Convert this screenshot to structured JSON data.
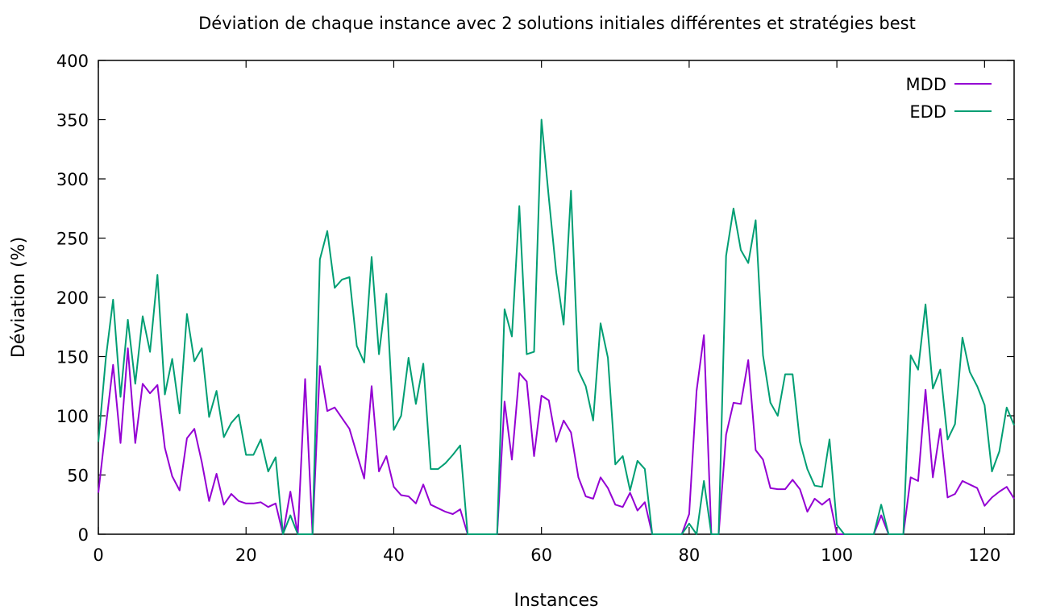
{
  "chart_data": {
    "type": "line",
    "title": "Déviation de chaque instance avec 2 solutions initiales différentes et stratégies best",
    "xlabel": "Instances",
    "ylabel": "Déviation (%)",
    "xlim": [
      0,
      124
    ],
    "ylim": [
      0,
      400
    ],
    "xticks": [
      0,
      20,
      40,
      60,
      80,
      100,
      120
    ],
    "yticks": [
      0,
      50,
      100,
      150,
      200,
      250,
      300,
      350,
      400
    ],
    "xtick_labels": [
      "0",
      "20",
      "40",
      "60",
      "80",
      "100",
      "120"
    ],
    "ytick_labels": [
      "0",
      "50",
      "100",
      "150",
      "200",
      "250",
      "300",
      "350",
      "400"
    ],
    "grid": false,
    "legend_position": "top-right",
    "series": [
      {
        "name": "MDD",
        "color": "#9400d3",
        "x": [
          0,
          1,
          2,
          3,
          4,
          5,
          6,
          7,
          8,
          9,
          10,
          11,
          12,
          13,
          14,
          15,
          16,
          17,
          18,
          19,
          20,
          21,
          22,
          23,
          24,
          25,
          26,
          27,
          28,
          29,
          30,
          31,
          32,
          33,
          34,
          35,
          36,
          37,
          38,
          39,
          40,
          41,
          42,
          43,
          44,
          45,
          46,
          47,
          48,
          49,
          50,
          51,
          52,
          53,
          54,
          55,
          56,
          57,
          58,
          59,
          60,
          61,
          62,
          63,
          64,
          65,
          66,
          67,
          68,
          69,
          70,
          71,
          72,
          73,
          74,
          75,
          76,
          77,
          78,
          79,
          80,
          81,
          82,
          83,
          84,
          85,
          86,
          87,
          88,
          89,
          90,
          91,
          92,
          93,
          94,
          95,
          96,
          97,
          98,
          99,
          100,
          101,
          102,
          103,
          104,
          105,
          106,
          107,
          108,
          109,
          110,
          111,
          112,
          113,
          114,
          115,
          116,
          117,
          118,
          119,
          120,
          121,
          122,
          123,
          124
        ],
        "values": [
          35,
          90,
          143,
          77,
          157,
          77,
          127,
          119,
          126,
          73,
          49,
          37,
          81,
          89,
          61,
          28,
          51,
          25,
          34,
          28,
          26,
          26,
          27,
          23,
          26,
          0,
          36,
          0,
          131,
          0,
          142,
          104,
          107,
          98,
          89,
          68,
          47,
          125,
          53,
          66,
          40,
          33,
          32,
          26,
          42,
          25,
          22,
          19,
          17,
          21,
          0,
          0,
          0,
          0,
          0,
          112,
          63,
          136,
          129,
          66,
          117,
          113,
          78,
          96,
          86,
          48,
          32,
          30,
          48,
          39,
          25,
          23,
          35,
          20,
          27,
          0,
          0,
          0,
          0,
          0,
          17,
          121,
          168,
          0,
          0,
          84,
          111,
          110,
          147,
          71,
          63,
          39,
          38,
          38,
          46,
          38,
          19,
          30,
          25,
          30,
          0,
          0,
          0,
          0,
          0,
          0,
          16,
          0,
          0,
          0,
          48,
          45,
          122,
          48,
          89,
          31,
          34,
          45,
          42,
          39,
          24,
          31,
          36,
          40,
          30
        ]
      },
      {
        "name": "EDD",
        "color": "#009e73",
        "x": [
          0,
          1,
          2,
          3,
          4,
          5,
          6,
          7,
          8,
          9,
          10,
          11,
          12,
          13,
          14,
          15,
          16,
          17,
          18,
          19,
          20,
          21,
          22,
          23,
          24,
          25,
          26,
          27,
          28,
          29,
          30,
          31,
          32,
          33,
          34,
          35,
          36,
          37,
          38,
          39,
          40,
          41,
          42,
          43,
          44,
          45,
          46,
          47,
          48,
          49,
          50,
          51,
          52,
          53,
          54,
          55,
          56,
          57,
          58,
          59,
          60,
          61,
          62,
          63,
          64,
          65,
          66,
          67,
          68,
          69,
          70,
          71,
          72,
          73,
          74,
          75,
          76,
          77,
          78,
          79,
          80,
          81,
          82,
          83,
          84,
          85,
          86,
          87,
          88,
          89,
          90,
          91,
          92,
          93,
          94,
          95,
          96,
          97,
          98,
          99,
          100,
          101,
          102,
          103,
          104,
          105,
          106,
          107,
          108,
          109,
          110,
          111,
          112,
          113,
          114,
          115,
          116,
          117,
          118,
          119,
          120,
          121,
          122,
          123,
          124
        ],
        "values": [
          78,
          148,
          198,
          116,
          181,
          127,
          184,
          154,
          219,
          118,
          148,
          102,
          186,
          146,
          157,
          99,
          121,
          82,
          94,
          101,
          67,
          67,
          80,
          53,
          65,
          0,
          16,
          0,
          0,
          0,
          232,
          256,
          208,
          215,
          217,
          159,
          145,
          234,
          152,
          203,
          88,
          100,
          149,
          110,
          144,
          55,
          55,
          60,
          67,
          75,
          0,
          0,
          0,
          0,
          0,
          190,
          167,
          277,
          152,
          154,
          350,
          284,
          221,
          177,
          290,
          138,
          125,
          96,
          178,
          149,
          59,
          66,
          37,
          62,
          55,
          0,
          0,
          0,
          0,
          0,
          9,
          0,
          45,
          0,
          0,
          235,
          275,
          240,
          229,
          265,
          151,
          111,
          100,
          135,
          135,
          78,
          55,
          41,
          40,
          80,
          8,
          0,
          0,
          0,
          0,
          0,
          25,
          0,
          0,
          0,
          151,
          139,
          194,
          123,
          139,
          80,
          93,
          166,
          137,
          125,
          109,
          53,
          70,
          107,
          92
        ]
      }
    ]
  }
}
